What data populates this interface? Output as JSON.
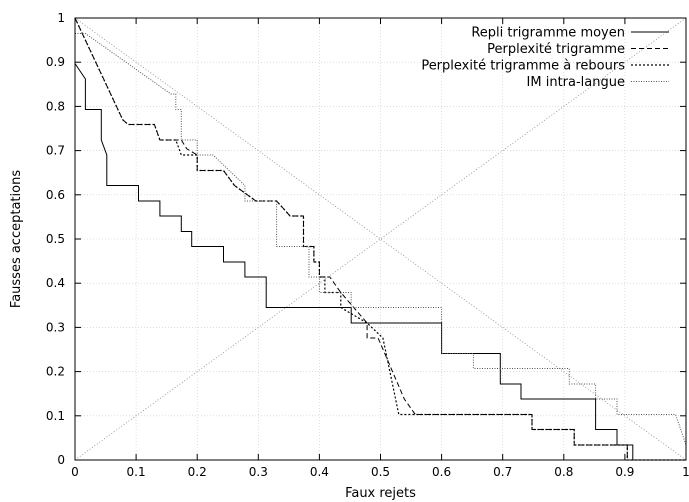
{
  "chart_data": {
    "type": "line",
    "title": "",
    "xlabel": "Faux rejets",
    "ylabel": "Fausses acceptations",
    "xlim": [
      0,
      1
    ],
    "ylim": [
      0,
      1
    ],
    "x_ticks": [
      "0",
      "0.1",
      "0.2",
      "0.3",
      "0.4",
      "0.5",
      "0.6",
      "0.7",
      "0.8",
      "0.9",
      "1"
    ],
    "y_ticks": [
      "0",
      "0.1",
      "0.2",
      "0.3",
      "0.4",
      "0.5",
      "0.6",
      "0.7",
      "0.8",
      "0.9",
      "1"
    ],
    "grid": true,
    "legend_position": "top-right",
    "series": [
      {
        "name": "Repli trigramme moyen",
        "style": "solid",
        "color": "#000000",
        "x": [
          0,
          0,
          0.017,
          0.017,
          0.043,
          0.043,
          0.052,
          0.052,
          0.104,
          0.104,
          0.139,
          0.139,
          0.174,
          0.174,
          0.191,
          0.191,
          0.243,
          0.243,
          0.278,
          0.278,
          0.313,
          0.313,
          0.452,
          0.452,
          0.6,
          0.6,
          0.643,
          0.643,
          0.696,
          0.696,
          0.73,
          0.73,
          0.852,
          0.852,
          0.887,
          0.887,
          0.913,
          0.913,
          1
        ],
        "y": [
          0.997,
          0.897,
          0.862,
          0.793,
          0.793,
          0.724,
          0.69,
          0.621,
          0.621,
          0.586,
          0.586,
          0.552,
          0.552,
          0.517,
          0.517,
          0.483,
          0.483,
          0.448,
          0.448,
          0.414,
          0.414,
          0.345,
          0.345,
          0.31,
          0.31,
          0.241,
          0.241,
          0.241,
          0.241,
          0.172,
          0.172,
          0.138,
          0.138,
          0.069,
          0.069,
          0.034,
          0.034,
          0,
          0
        ]
      },
      {
        "name": "Perplexité trigramme",
        "style": "dashed",
        "color": "#000000",
        "x": [
          0,
          0.078,
          0.087,
          0.087,
          0.113,
          0.13,
          0.139,
          0.139,
          0.174,
          0.183,
          0.2,
          0.2,
          0.226,
          0.243,
          0.261,
          0.261,
          0.296,
          0.304,
          0.33,
          0.33,
          0.352,
          0.352,
          0.374,
          0.374,
          0.391,
          0.391,
          0.4,
          0.4,
          0.409,
          0.409,
          0.417,
          0.417,
          0.435,
          0.435,
          0.478,
          0.478,
          0.496,
          0.496,
          0.539,
          0.557,
          0.557,
          0.748,
          0.748,
          0.817,
          0.817,
          0.87,
          0.87,
          0.904,
          0.904,
          1
        ],
        "y": [
          1,
          0.77,
          0.759,
          0.759,
          0.759,
          0.759,
          0.724,
          0.724,
          0.724,
          0.704,
          0.69,
          0.655,
          0.655,
          0.655,
          0.621,
          0.621,
          0.586,
          0.586,
          0.586,
          0.586,
          0.552,
          0.552,
          0.552,
          0.483,
          0.483,
          0.448,
          0.448,
          0.414,
          0.414,
          0.414,
          0.414,
          0.414,
          0.379,
          0.379,
          0.31,
          0.276,
          0.276,
          0.276,
          0.138,
          0.103,
          0.103,
          0.103,
          0.069,
          0.069,
          0.034,
          0.034,
          0.034,
          0.034,
          0,
          0
        ]
      },
      {
        "name": "Perplexité trigramme à rebours",
        "style": "dotted",
        "color": "#000000",
        "x": [
          0,
          0.078,
          0.087,
          0.087,
          0.113,
          0.13,
          0.139,
          0.139,
          0.165,
          0.174,
          0.183,
          0.2,
          0.2,
          0.226,
          0.243,
          0.261,
          0.261,
          0.296,
          0.304,
          0.33,
          0.33,
          0.352,
          0.352,
          0.374,
          0.374,
          0.391,
          0.391,
          0.4,
          0.4,
          0.409,
          0.409,
          0.435,
          0.435,
          0.478,
          0.478,
          0.504,
          0.504,
          0.53,
          0.53,
          0.748,
          0.748,
          0.817,
          0.817,
          0.87,
          0.87,
          0.904,
          0.904,
          1
        ],
        "y": [
          1,
          0.77,
          0.759,
          0.759,
          0.759,
          0.759,
          0.724,
          0.724,
          0.724,
          0.69,
          0.69,
          0.69,
          0.655,
          0.655,
          0.655,
          0.621,
          0.621,
          0.586,
          0.586,
          0.586,
          0.586,
          0.552,
          0.552,
          0.552,
          0.483,
          0.483,
          0.448,
          0.448,
          0.414,
          0.414,
          0.379,
          0.379,
          0.345,
          0.31,
          0.31,
          0.276,
          0.276,
          0.103,
          0.103,
          0.103,
          0.069,
          0.069,
          0.034,
          0.034,
          0.034,
          0.034,
          0,
          0
        ]
      },
      {
        "name": "IM intra-langue",
        "style": "fine-dotted",
        "color": "#555555",
        "x": [
          0,
          0.017,
          0.017,
          0.157,
          0.165,
          0.165,
          0.174,
          0.174,
          0.2,
          0.2,
          0.226,
          0.226,
          0.278,
          0.278,
          0.33,
          0.33,
          0.383,
          0.383,
          0.4,
          0.4,
          0.452,
          0.452,
          0.6,
          0.6,
          0.652,
          0.652,
          0.809,
          0.809,
          0.852,
          0.852,
          0.887,
          0.887,
          0.983,
          1
        ],
        "y": [
          0.965,
          0.965,
          0.965,
          0.828,
          0.828,
          0.793,
          0.793,
          0.724,
          0.724,
          0.69,
          0.69,
          0.69,
          0.621,
          0.586,
          0.586,
          0.483,
          0.483,
          0.414,
          0.414,
          0.379,
          0.379,
          0.345,
          0.345,
          0.241,
          0.241,
          0.207,
          0.207,
          0.172,
          0.172,
          0.138,
          0.138,
          0.103,
          0.103,
          0.034
        ]
      }
    ],
    "reference_lines": [
      {
        "x": [
          0,
          1
        ],
        "y": [
          1,
          0
        ]
      },
      {
        "x": [
          0,
          1
        ],
        "y": [
          0,
          1
        ]
      }
    ]
  }
}
